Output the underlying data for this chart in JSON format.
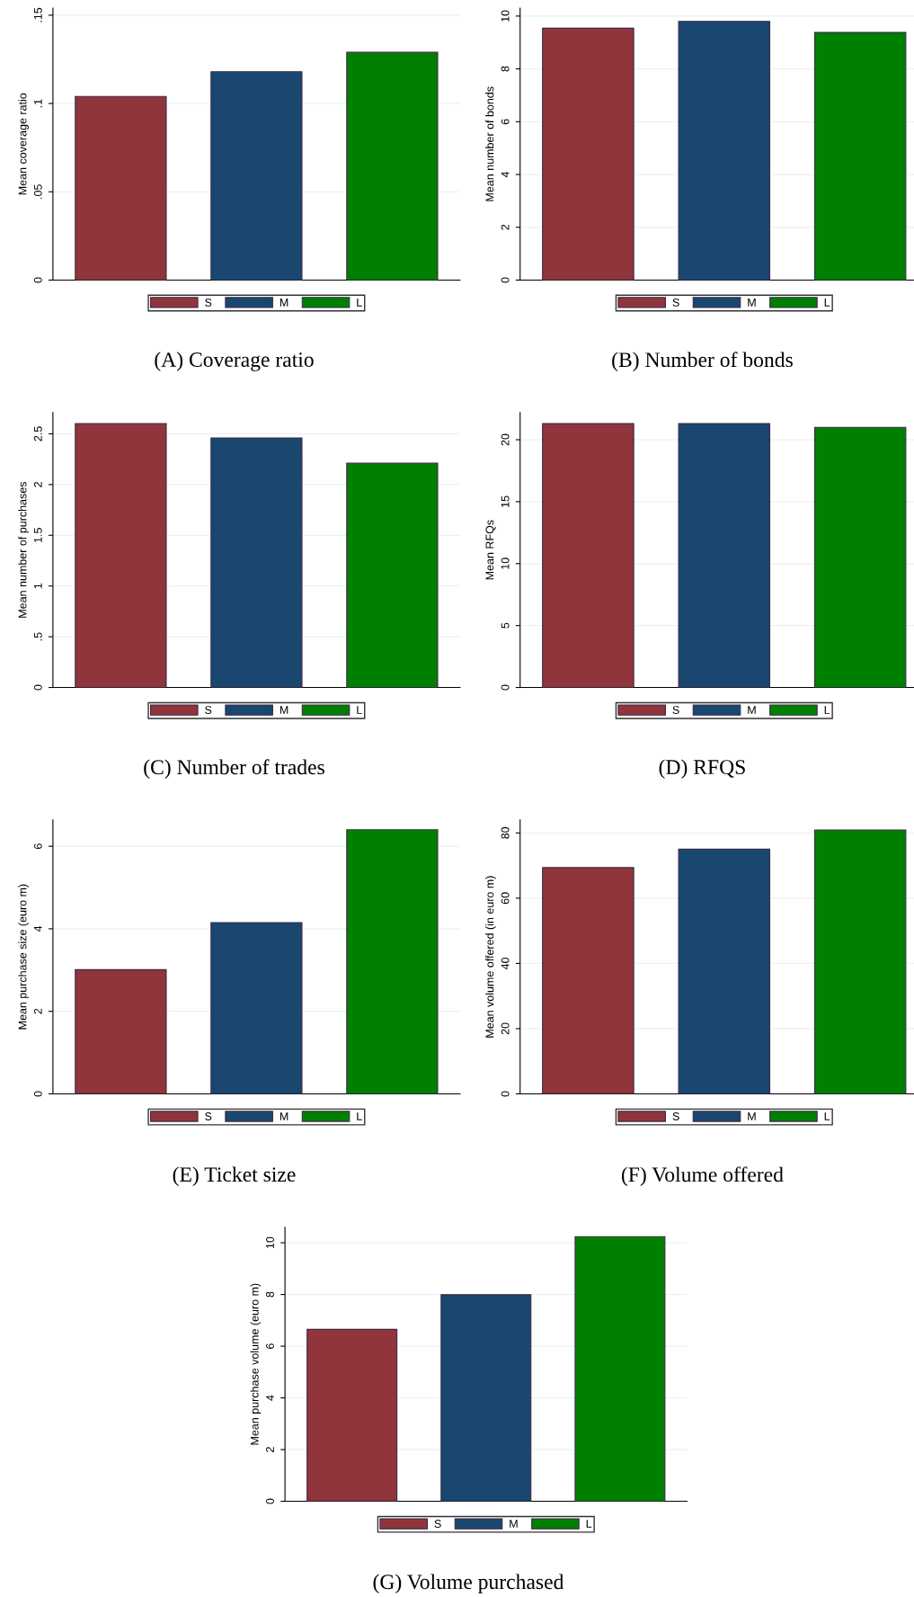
{
  "chart_data": [
    {
      "type": "bar",
      "title": "(A) Coverage ratio",
      "ylabel": "Mean coverage ratio",
      "categories": [
        null,
        null,
        null
      ],
      "series": [
        {
          "name": "S",
          "color": "#90353b",
          "values": [
            0.104,
            null,
            null
          ]
        },
        {
          "name": "M",
          "color": "#1a476f",
          "values": [
            null,
            0.118,
            null
          ]
        },
        {
          "name": "L",
          "color": "#008000",
          "values": [
            null,
            null,
            0.129
          ]
        }
      ],
      "ylim": [
        0,
        0.154
      ],
      "yticks": [
        0,
        {
          "value": 0.05,
          "label": ".05"
        },
        {
          "value": 0.1,
          "label": ".1"
        },
        {
          "value": 0.15,
          "label": ".15"
        }
      ],
      "grid": "y",
      "legend": "bottom"
    },
    {
      "type": "bar",
      "title": "(B) Number of bonds",
      "ylabel": "Mean number of bonds",
      "categories": [
        null,
        null,
        null
      ],
      "series": [
        {
          "name": "S",
          "color": "#90353b",
          "values": [
            9.54,
            null,
            null
          ]
        },
        {
          "name": "M",
          "color": "#1a476f",
          "values": [
            null,
            9.8,
            null
          ]
        },
        {
          "name": "L",
          "color": "#008000",
          "values": [
            null,
            null,
            9.38
          ]
        }
      ],
      "ylim": [
        0,
        10.3
      ],
      "yticks": [
        0,
        2,
        4,
        6,
        8,
        10
      ],
      "grid": "y",
      "legend": "bottom"
    },
    {
      "type": "bar",
      "title": "(C) Number of trades",
      "ylabel": "Mean number of purchases",
      "categories": [
        null,
        null,
        null
      ],
      "series": [
        {
          "name": "S",
          "color": "#90353b",
          "values": [
            2.6,
            null,
            null
          ]
        },
        {
          "name": "M",
          "color": "#1a476f",
          "values": [
            null,
            2.46,
            null
          ]
        },
        {
          "name": "L",
          "color": "#008000",
          "values": [
            null,
            null,
            2.21
          ]
        }
      ],
      "ylim": [
        0,
        2.71
      ],
      "yticks": [
        0,
        {
          "value": 0.5,
          "label": ".5"
        },
        1,
        1.5,
        2,
        2.5
      ],
      "grid": "y",
      "legend": "bottom"
    },
    {
      "type": "bar",
      "title": "(D) RFQS",
      "ylabel": "Mean RFQs",
      "categories": [
        null,
        null,
        null
      ],
      "series": [
        {
          "name": "S",
          "color": "#90353b",
          "values": [
            21.3,
            null,
            null
          ]
        },
        {
          "name": "M",
          "color": "#1a476f",
          "values": [
            null,
            21.3,
            null
          ]
        },
        {
          "name": "L",
          "color": "#008000",
          "values": [
            null,
            null,
            21.0
          ]
        }
      ],
      "ylim": [
        0,
        22.2
      ],
      "yticks": [
        0,
        5,
        10,
        15,
        20
      ],
      "grid": "y",
      "legend": "bottom"
    },
    {
      "type": "bar",
      "title": "(E) Ticket size",
      "ylabel": "Mean purchase size (euro m)",
      "categories": [
        null,
        null,
        null
      ],
      "series": [
        {
          "name": "S",
          "color": "#90353b",
          "values": [
            3.01,
            null,
            null
          ]
        },
        {
          "name": "M",
          "color": "#1a476f",
          "values": [
            null,
            4.15,
            null
          ]
        },
        {
          "name": "L",
          "color": "#008000",
          "values": [
            null,
            null,
            6.4
          ]
        }
      ],
      "ylim": [
        0,
        6.64
      ],
      "yticks": [
        0,
        2,
        4,
        6
      ],
      "grid": "y",
      "legend": "bottom"
    },
    {
      "type": "bar",
      "title": "(F) Volume offered",
      "ylabel": "Mean volume offered (in euro m)",
      "categories": [
        null,
        null,
        null
      ],
      "series": [
        {
          "name": "S",
          "color": "#90353b",
          "values": [
            69.4,
            null,
            null
          ]
        },
        {
          "name": "M",
          "color": "#1a476f",
          "values": [
            null,
            75,
            null
          ]
        },
        {
          "name": "L",
          "color": "#008000",
          "values": [
            null,
            null,
            80.9
          ]
        }
      ],
      "ylim": [
        0,
        84
      ],
      "yticks": [
        0,
        20,
        40,
        60,
        80
      ],
      "grid": "y",
      "legend": "bottom"
    },
    {
      "type": "bar",
      "title": "(G) Volume purchased",
      "ylabel": "Mean purchase volume (euro m)",
      "categories": [
        null,
        null,
        null
      ],
      "series": [
        {
          "name": "S",
          "color": "#90353b",
          "values": [
            6.65,
            null,
            null
          ]
        },
        {
          "name": "M",
          "color": "#1a476f",
          "values": [
            null,
            7.99,
            null
          ]
        },
        {
          "name": "L",
          "color": "#008000",
          "values": [
            null,
            null,
            10.24
          ]
        }
      ],
      "ylim": [
        0,
        10.6
      ],
      "yticks": [
        0,
        2,
        4,
        6,
        8,
        10
      ],
      "grid": "y",
      "legend": "bottom"
    }
  ]
}
